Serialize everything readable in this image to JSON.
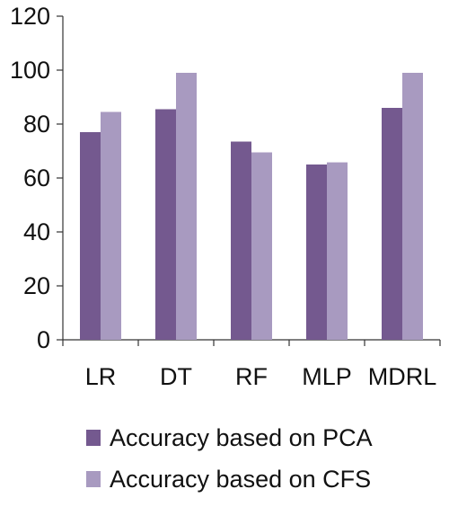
{
  "chart_data": {
    "type": "bar",
    "title": "",
    "xlabel": "",
    "ylabel": "",
    "categories": [
      "LR",
      "DT",
      "RF",
      "MLP",
      "MDRL"
    ],
    "series": [
      {
        "name": "Accuracy based on PCA",
        "color": "#74598f",
        "values": [
          77,
          85.5,
          73.5,
          65,
          86
        ]
      },
      {
        "name": "Accuracy based on CFS",
        "color": "#a89ac0",
        "values": [
          84.5,
          99,
          69.5,
          65.8,
          99
        ]
      }
    ],
    "ylim": [
      0,
      120
    ],
    "yticks": [
      0,
      20,
      40,
      60,
      80,
      100,
      120
    ],
    "grid": false,
    "legend_position": "bottom"
  }
}
